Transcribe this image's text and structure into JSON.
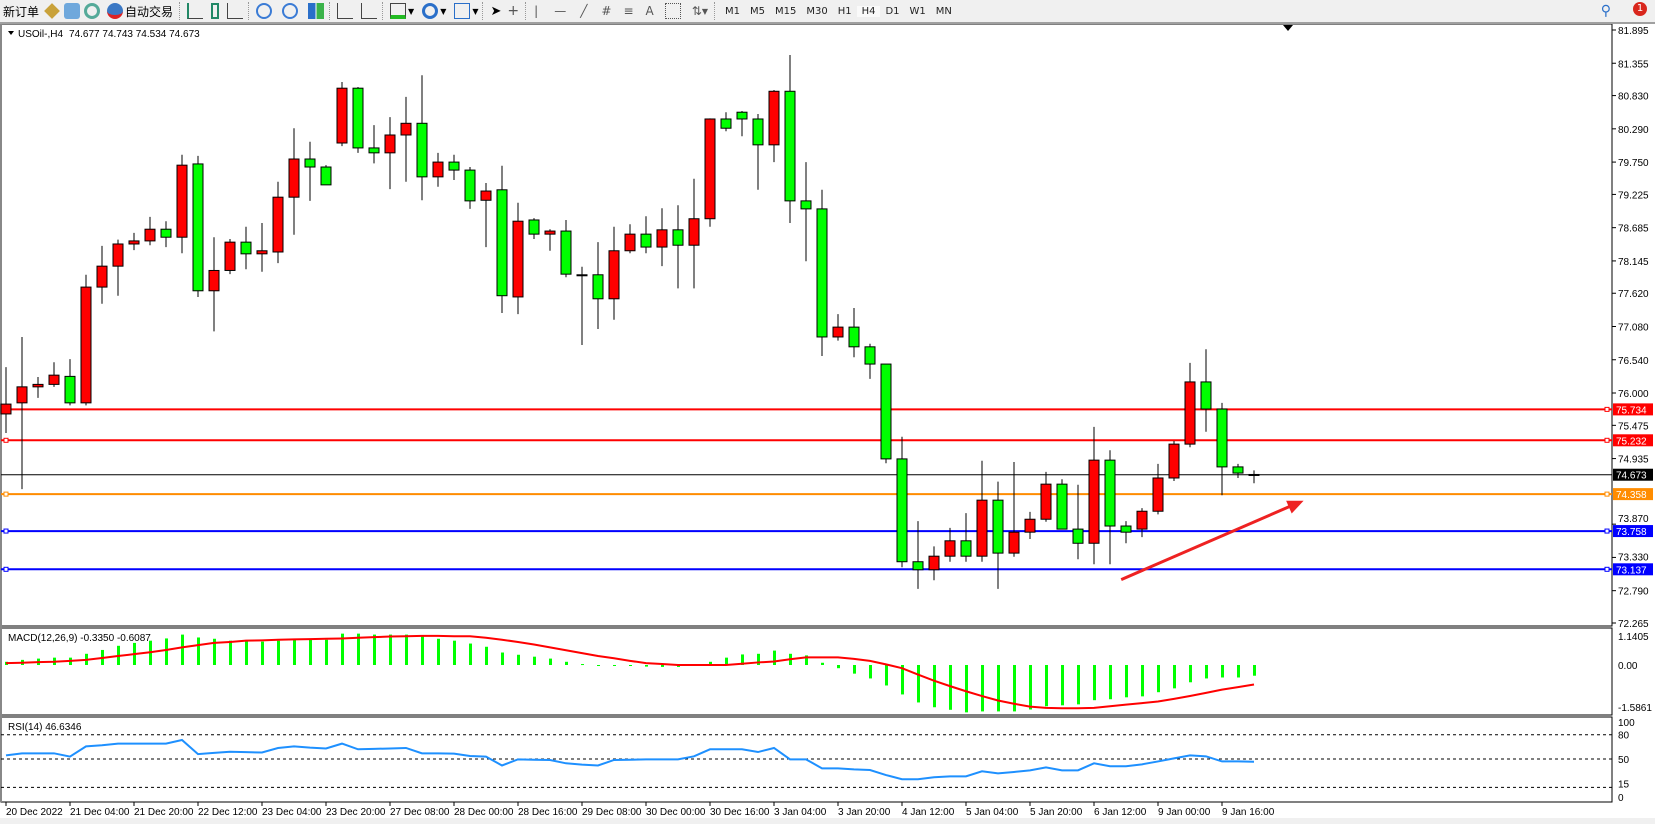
{
  "toolbar": {
    "new_order_label": "新订单",
    "autotrading_label": "自动交易",
    "icons": [
      "new-order-icon",
      "strategy-tester-icon",
      "market-watch-icon",
      "signals-icon",
      "autotrading-icon",
      "bar-chart-icon",
      "candlestick-icon",
      "line-chart-icon",
      "zoom-in-icon",
      "zoom-out-icon",
      "tile-windows-icon",
      "auto-scroll-icon",
      "chart-shift-icon",
      "indicators-icon",
      "periods-icon",
      "templates-icon",
      "cursor-icon",
      "crosshair-icon",
      "vertical-line-icon",
      "horizontal-line-icon",
      "trendline-icon",
      "equidistant-channel-icon",
      "fibonacci-icon",
      "text-icon",
      "text-label-icon",
      "arrows-icon"
    ],
    "text_tool_label": "A",
    "timeframes": [
      "M1",
      "M5",
      "M15",
      "M30",
      "H1",
      "H4",
      "D1",
      "W1",
      "MN"
    ],
    "active_timeframe": "H4",
    "notification_count": "1"
  },
  "chart_header": {
    "symbol_label": "USOil-,H4",
    "ohlc_label": "74.677 74.743 74.534 74.673"
  },
  "macd_label": "MACD(12,26,9) -0.3350 -0.6087",
  "rsi_label": "RSI(14) 46.6346",
  "colors": {
    "bull": "#ff0000",
    "bear": "#00ff00",
    "macd_hist": "#00ff00",
    "macd_signal": "#ff0000",
    "rsi": "#1e90ff",
    "arrow": "#ee2222"
  },
  "chart_data": {
    "type": "candlestick",
    "symbol": "USOil-",
    "timeframe": "H4",
    "ohlc": [
      [
        75.66,
        76.42,
        75.35,
        75.82
      ],
      [
        75.84,
        76.91,
        74.44,
        76.1
      ],
      [
        76.1,
        76.26,
        75.92,
        76.14
      ],
      [
        76.14,
        76.5,
        76.1,
        76.29
      ],
      [
        76.27,
        76.55,
        75.8,
        75.84
      ],
      [
        75.84,
        77.92,
        75.8,
        77.72
      ],
      [
        77.72,
        78.39,
        77.45,
        78.06
      ],
      [
        78.06,
        78.49,
        77.58,
        78.42
      ],
      [
        78.42,
        78.6,
        78.32,
        78.47
      ],
      [
        78.47,
        78.86,
        78.4,
        78.66
      ],
      [
        78.66,
        78.79,
        78.37,
        78.53
      ],
      [
        78.53,
        79.87,
        78.27,
        79.7
      ],
      [
        79.72,
        79.85,
        77.56,
        77.66
      ],
      [
        77.66,
        78.53,
        77.0,
        77.99
      ],
      [
        77.99,
        78.5,
        77.93,
        78.45
      ],
      [
        78.45,
        78.7,
        78.01,
        78.26
      ],
      [
        78.26,
        78.76,
        77.97,
        78.31
      ],
      [
        78.29,
        79.43,
        78.11,
        79.18
      ],
      [
        79.18,
        80.3,
        78.57,
        79.8
      ],
      [
        79.8,
        80.08,
        79.12,
        79.67
      ],
      [
        79.67,
        79.7,
        79.38,
        79.38
      ],
      [
        80.06,
        81.05,
        80.01,
        80.95
      ],
      [
        80.95,
        80.97,
        79.9,
        79.98
      ],
      [
        79.98,
        80.35,
        79.73,
        79.9
      ],
      [
        79.9,
        80.48,
        79.31,
        80.19
      ],
      [
        80.19,
        80.81,
        79.43,
        80.38
      ],
      [
        80.38,
        81.16,
        79.13,
        79.51
      ],
      [
        79.51,
        79.9,
        79.35,
        79.75
      ],
      [
        79.75,
        79.87,
        79.46,
        79.62
      ],
      [
        79.62,
        79.67,
        78.99,
        79.12
      ],
      [
        79.13,
        79.41,
        78.37,
        79.28
      ],
      [
        79.3,
        79.69,
        77.3,
        77.58
      ],
      [
        77.56,
        79.09,
        77.28,
        78.79
      ],
      [
        78.81,
        78.84,
        78.5,
        78.58
      ],
      [
        78.58,
        78.66,
        78.31,
        78.63
      ],
      [
        78.63,
        78.81,
        77.88,
        77.93
      ],
      [
        77.92,
        78.05,
        76.78,
        77.92
      ],
      [
        77.92,
        78.45,
        77.04,
        77.53
      ],
      [
        77.53,
        78.7,
        77.19,
        78.31
      ],
      [
        78.31,
        78.74,
        78.27,
        78.58
      ],
      [
        78.58,
        78.87,
        78.27,
        78.37
      ],
      [
        78.37,
        79.0,
        78.06,
        78.65
      ],
      [
        78.65,
        79.05,
        77.7,
        78.4
      ],
      [
        78.4,
        79.48,
        77.7,
        78.83
      ],
      [
        78.83,
        80.46,
        78.7,
        80.45
      ],
      [
        80.45,
        80.56,
        80.25,
        80.3
      ],
      [
        80.56,
        80.58,
        80.17,
        80.45
      ],
      [
        80.45,
        80.53,
        79.3,
        80.03
      ],
      [
        80.03,
        80.92,
        79.75,
        80.9
      ],
      [
        80.9,
        81.49,
        78.76,
        79.12
      ],
      [
        79.12,
        79.75,
        78.14,
        78.99
      ],
      [
        78.99,
        79.3,
        76.6,
        76.91
      ],
      [
        76.91,
        77.28,
        76.85,
        77.07
      ],
      [
        77.07,
        77.38,
        76.58,
        76.75
      ],
      [
        76.75,
        76.8,
        76.23,
        76.47
      ],
      [
        76.47,
        76.47,
        74.86,
        74.93
      ],
      [
        74.93,
        75.29,
        73.17,
        73.26
      ],
      [
        73.26,
        73.92,
        72.82,
        73.13
      ],
      [
        73.13,
        73.51,
        72.96,
        73.35
      ],
      [
        73.35,
        73.81,
        73.26,
        73.6
      ],
      [
        73.6,
        74.05,
        73.26,
        73.35
      ],
      [
        73.35,
        74.9,
        73.26,
        74.26
      ],
      [
        74.26,
        74.56,
        72.82,
        73.4
      ],
      [
        73.4,
        74.88,
        73.34,
        73.74
      ],
      [
        73.74,
        74.07,
        73.63,
        73.95
      ],
      [
        73.95,
        74.72,
        73.91,
        74.52
      ],
      [
        74.52,
        74.6,
        73.79,
        73.79
      ],
      [
        73.79,
        74.51,
        73.3,
        73.56
      ],
      [
        73.56,
        75.45,
        73.22,
        74.91
      ],
      [
        74.91,
        75.07,
        73.22,
        73.84
      ],
      [
        73.84,
        73.92,
        73.56,
        73.74
      ],
      [
        73.79,
        74.13,
        73.66,
        74.08
      ],
      [
        74.08,
        74.85,
        74.03,
        74.62
      ],
      [
        74.62,
        75.22,
        74.57,
        75.17
      ],
      [
        75.17,
        76.49,
        75.12,
        76.18
      ],
      [
        76.18,
        76.71,
        75.37,
        75.74
      ],
      [
        75.74,
        75.84,
        74.34,
        74.8
      ],
      [
        74.8,
        74.85,
        74.62,
        74.7
      ],
      [
        74.677,
        74.743,
        74.534,
        74.673
      ]
    ],
    "x_tick_labels": [
      "20 Dec 2022",
      "21 Dec 04:00",
      "21 Dec 20:00",
      "22 Dec 12:00",
      "23 Dec 04:00",
      "23 Dec 20:00",
      "27 Dec 08:00",
      "28 Dec 00:00",
      "28 Dec 16:00",
      "29 Dec 08:00",
      "30 Dec 00:00",
      "30 Dec 16:00",
      "3 Jan 04:00",
      "3 Jan 20:00",
      "4 Jan 12:00",
      "5 Jan 04:00",
      "5 Jan 20:00",
      "6 Jan 12:00",
      "9 Jan 00:00",
      "9 Jan 16:00"
    ],
    "x_tick_every_bars": 4,
    "y_range": [
      72.265,
      81.895
    ],
    "y_tick_labels": [
      "81.895",
      "81.355",
      "80.830",
      "80.290",
      "79.750",
      "79.225",
      "78.685",
      "78.145",
      "77.620",
      "77.080",
      "76.540",
      "76.000",
      "75.475",
      "74.935",
      "73.870",
      "73.330",
      "72.790",
      "72.265"
    ],
    "horizontal_lines": [
      {
        "price": "75.734",
        "color": "#ff0000"
      },
      {
        "price": "75.232",
        "color": "#ff0000"
      },
      {
        "price": "74.673",
        "color": "#000000",
        "bid": true
      },
      {
        "price": "74.358",
        "color": "#ff8c00"
      },
      {
        "price": "73.758",
        "color": "#0000ff"
      },
      {
        "price": "73.137",
        "color": "#0000ff"
      }
    ],
    "arrow": {
      "from": {
        "bar": 69.7,
        "price": 72.97
      },
      "to": {
        "bar": 81.1,
        "price": 74.25
      }
    },
    "macd": {
      "y_tick_labels": [
        "1.1405",
        "0.00",
        "-1.5861"
      ],
      "y_range": [
        -1.5861,
        1.1405
      ],
      "main": [
        0.1,
        0.16,
        0.2,
        0.23,
        0.23,
        0.35,
        0.47,
        0.6,
        0.69,
        0.76,
        0.83,
        0.95,
        0.86,
        0.82,
        0.76,
        0.76,
        0.73,
        0.76,
        0.79,
        0.79,
        0.79,
        0.98,
        0.98,
        0.95,
        0.95,
        0.95,
        0.91,
        0.82,
        0.76,
        0.67,
        0.57,
        0.39,
        0.32,
        0.26,
        0.2,
        0.1,
        0.03,
        -0.03,
        -0.03,
        -0.03,
        -0.05,
        -0.06,
        -0.06,
        0.0,
        0.1,
        0.23,
        0.33,
        0.35,
        0.45,
        0.35,
        0.3,
        0.07,
        -0.1,
        -0.27,
        -0.42,
        -0.64,
        -0.92,
        -1.17,
        -1.32,
        -1.4,
        -1.48,
        -1.45,
        -1.45,
        -1.45,
        -1.39,
        -1.29,
        -1.26,
        -1.23,
        -1.1,
        -1.07,
        -1.01,
        -0.98,
        -0.85,
        -0.73,
        -0.54,
        -0.42,
        -0.39,
        -0.39,
        -0.335
      ],
      "signal": [
        0.06,
        0.07,
        0.09,
        0.1,
        0.13,
        0.16,
        0.22,
        0.28,
        0.34,
        0.4,
        0.47,
        0.55,
        0.62,
        0.69,
        0.72,
        0.76,
        0.77,
        0.79,
        0.8,
        0.81,
        0.82,
        0.83,
        0.85,
        0.87,
        0.89,
        0.9,
        0.91,
        0.91,
        0.9,
        0.9,
        0.85,
        0.79,
        0.72,
        0.64,
        0.55,
        0.46,
        0.37,
        0.28,
        0.21,
        0.13,
        0.06,
        0.03,
        0.0,
        0.0,
        0.0,
        0.0,
        0.04,
        0.08,
        0.11,
        0.18,
        0.24,
        0.24,
        0.24,
        0.19,
        0.13,
        0.02,
        -0.1,
        -0.3,
        -0.49,
        -0.66,
        -0.82,
        -0.97,
        -1.11,
        -1.21,
        -1.3,
        -1.34,
        -1.35,
        -1.35,
        -1.34,
        -1.29,
        -1.24,
        -1.19,
        -1.14,
        -1.06,
        -0.97,
        -0.87,
        -0.77,
        -0.69,
        -0.61
      ]
    },
    "rsi": {
      "y_tick_labels": [
        "100",
        "80",
        "50",
        "15",
        "0"
      ],
      "levels": [
        80,
        50,
        15
      ],
      "values": [
        54.5,
        57,
        57,
        57,
        53,
        65.6,
        67,
        69,
        69,
        69,
        69,
        73.5,
        56,
        57.5,
        59,
        58.5,
        58,
        63.6,
        65.6,
        64,
        63,
        69,
        62,
        62.5,
        63,
        63.6,
        57,
        57,
        56.6,
        53.7,
        53,
        42,
        49.6,
        49,
        48.8,
        44.7,
        43,
        42,
        48.8,
        49,
        49.6,
        49.6,
        49.6,
        53.3,
        62,
        62,
        62,
        58.6,
        63.6,
        49.6,
        49.6,
        38.5,
        38.5,
        37.2,
        36.4,
        30.2,
        25,
        25,
        27.4,
        28.6,
        28.6,
        34.8,
        32.3,
        34,
        36,
        39.7,
        36,
        36,
        44.7,
        41,
        41,
        43.4,
        47,
        50.8,
        54.5,
        53.3,
        47,
        47,
        46.63
      ]
    }
  }
}
